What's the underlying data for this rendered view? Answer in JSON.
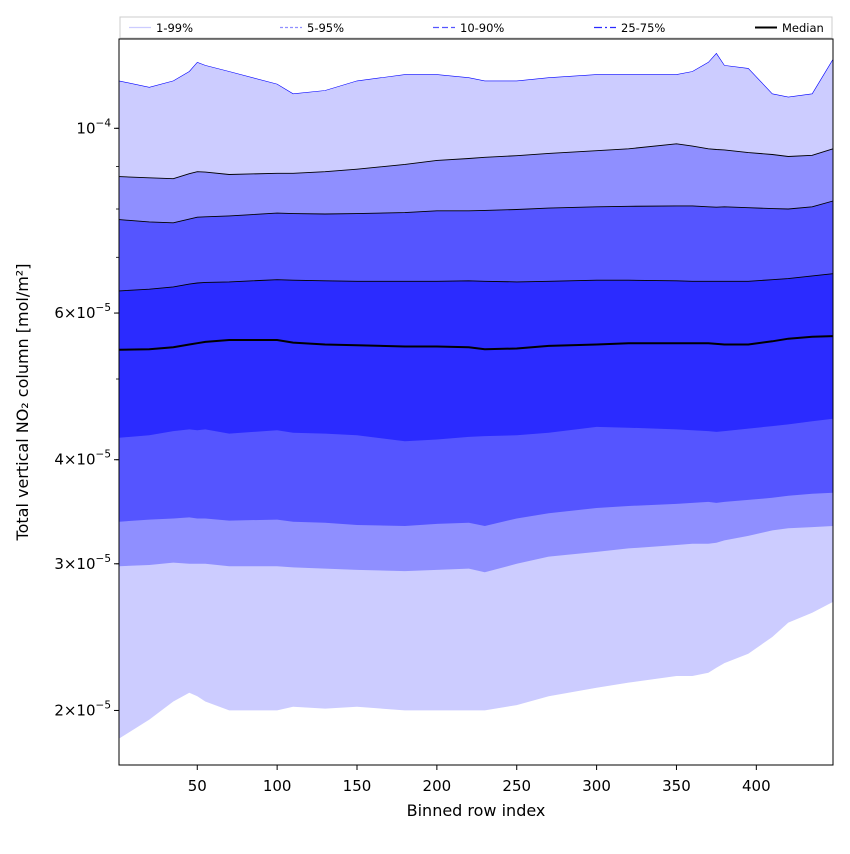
{
  "chart_data": {
    "type": "area",
    "title": "",
    "xlabel": "Binned row index",
    "ylabel": "Total vertical NO₂ column [mol/m²]",
    "y_scale": "log",
    "xlim": [
      1,
      448
    ],
    "ylim": [
      1.72e-05,
      0.000128
    ],
    "grid": false,
    "legend_placement": "top",
    "x_ticks": [
      {
        "value": 50,
        "label": "50"
      },
      {
        "value": 100,
        "label": "100"
      },
      {
        "value": 150,
        "label": "150"
      },
      {
        "value": 200,
        "label": "200"
      },
      {
        "value": 250,
        "label": "250"
      },
      {
        "value": 300,
        "label": "300"
      },
      {
        "value": 350,
        "label": "350"
      },
      {
        "value": 400,
        "label": "400"
      }
    ],
    "y_ticks": [
      {
        "value": 2e-05,
        "mantissa": "2",
        "exp": "−5"
      },
      {
        "value": 3e-05,
        "mantissa": "3",
        "exp": "−5"
      },
      {
        "value": 4e-05,
        "mantissa": "4",
        "exp": "−5"
      },
      {
        "value": 6e-05,
        "mantissa": "6",
        "exp": "−5"
      },
      {
        "value": 0.0001,
        "mantissa": "",
        "exp": "−4"
      }
    ],
    "x": [
      1,
      20,
      35,
      45,
      50,
      55,
      70,
      100,
      110,
      130,
      150,
      180,
      200,
      220,
      230,
      250,
      270,
      300,
      320,
      350,
      360,
      370,
      375,
      380,
      395,
      410,
      420,
      435,
      448
    ],
    "bands": [
      {
        "name": "1-99%",
        "color": "#ccccff",
        "edge": "#0000ff",
        "lower": [
          1.85e-05,
          1.95e-05,
          2.05e-05,
          2.1e-05,
          2.08e-05,
          2.05e-05,
          2e-05,
          2e-05,
          2.02e-05,
          2.01e-05,
          2.02e-05,
          2e-05,
          2e-05,
          2e-05,
          2e-05,
          2.03e-05,
          2.08e-05,
          2.13e-05,
          2.16e-05,
          2.2e-05,
          2.2e-05,
          2.22e-05,
          2.25e-05,
          2.28e-05,
          2.34e-05,
          2.45e-05,
          2.55e-05,
          2.62e-05,
          2.7e-05
        ],
        "upper": [
          0.000114,
          0.000112,
          0.000114,
          0.000117,
          0.00012,
          0.000119,
          0.000117,
          0.000113,
          0.00011,
          0.000111,
          0.000114,
          0.000116,
          0.000116,
          0.000115,
          0.000114,
          0.000114,
          0.000115,
          0.000116,
          0.000116,
          0.000116,
          0.000117,
          0.00012,
          0.000123,
          0.000119,
          0.000118,
          0.00011,
          0.000109,
          0.00011,
          0.000121
        ]
      },
      {
        "name": "5-95%",
        "color": "#8f8fff",
        "edge": "#000000",
        "lower": [
          2.98e-05,
          2.99e-05,
          3.01e-05,
          3e-05,
          3e-05,
          3e-05,
          2.98e-05,
          2.98e-05,
          2.97e-05,
          2.96e-05,
          2.95e-05,
          2.94e-05,
          2.95e-05,
          2.96e-05,
          2.93e-05,
          3e-05,
          3.06e-05,
          3.1e-05,
          3.13e-05,
          3.16e-05,
          3.17e-05,
          3.17e-05,
          3.18e-05,
          3.2e-05,
          3.24e-05,
          3.29e-05,
          3.31e-05,
          3.32e-05,
          3.33e-05
        ],
        "upper": [
          8.75e-05,
          8.72e-05,
          8.7e-05,
          8.82e-05,
          8.87e-05,
          8.86e-05,
          8.8e-05,
          8.83e-05,
          8.83e-05,
          8.87e-05,
          8.93e-05,
          9.05e-05,
          9.15e-05,
          9.2e-05,
          9.23e-05,
          9.27e-05,
          9.33e-05,
          9.4e-05,
          9.45e-05,
          9.58e-05,
          9.52e-05,
          9.45e-05,
          9.43e-05,
          9.42e-05,
          9.35e-05,
          9.3e-05,
          9.25e-05,
          9.28e-05,
          9.45e-05
        ]
      },
      {
        "name": "10-90%",
        "color": "#5555ff",
        "edge": "#000000",
        "lower": [
          3.37e-05,
          3.39e-05,
          3.4e-05,
          3.41e-05,
          3.4e-05,
          3.4e-05,
          3.38e-05,
          3.39e-05,
          3.37e-05,
          3.36e-05,
          3.34e-05,
          3.33e-05,
          3.35e-05,
          3.36e-05,
          3.33e-05,
          3.4e-05,
          3.45e-05,
          3.5e-05,
          3.52e-05,
          3.54e-05,
          3.55e-05,
          3.56e-05,
          3.55e-05,
          3.56e-05,
          3.58e-05,
          3.6e-05,
          3.62e-05,
          3.64e-05,
          3.65e-05
        ],
        "upper": [
          7.77e-05,
          7.72e-05,
          7.7e-05,
          7.78e-05,
          7.82e-05,
          7.83e-05,
          7.85e-05,
          7.91e-05,
          7.9e-05,
          7.89e-05,
          7.9e-05,
          7.92e-05,
          7.96e-05,
          7.96e-05,
          7.97e-05,
          7.99e-05,
          8.02e-05,
          8.05e-05,
          8.06e-05,
          8.07e-05,
          8.07e-05,
          8.05e-05,
          8.04e-05,
          8.05e-05,
          8.03e-05,
          8.01e-05,
          8e-05,
          8.05e-05,
          8.18e-05
        ]
      },
      {
        "name": "25-75%",
        "color": "#2b2bff",
        "edge": "#000000",
        "lower": [
          4.25e-05,
          4.28e-05,
          4.33e-05,
          4.35e-05,
          4.34e-05,
          4.35e-05,
          4.3e-05,
          4.34e-05,
          4.31e-05,
          4.3e-05,
          4.28e-05,
          4.21e-05,
          4.23e-05,
          4.26e-05,
          4.27e-05,
          4.28e-05,
          4.31e-05,
          4.38e-05,
          4.37e-05,
          4.35e-05,
          4.34e-05,
          4.33e-05,
          4.32e-05,
          4.33e-05,
          4.36e-05,
          4.39e-05,
          4.41e-05,
          4.45e-05,
          4.48e-05
        ],
        "upper": [
          6.38e-05,
          6.41e-05,
          6.45e-05,
          6.5e-05,
          6.52e-05,
          6.53e-05,
          6.54e-05,
          6.58e-05,
          6.57e-05,
          6.56e-05,
          6.55e-05,
          6.55e-05,
          6.55e-05,
          6.56e-05,
          6.55e-05,
          6.54e-05,
          6.55e-05,
          6.57e-05,
          6.57e-05,
          6.56e-05,
          6.55e-05,
          6.55e-05,
          6.55e-05,
          6.55e-05,
          6.55e-05,
          6.58e-05,
          6.6e-05,
          6.65e-05,
          6.69e-05
        ]
      }
    ],
    "median": {
      "name": "Median",
      "color": "#000000",
      "values": [
        5.42e-05,
        5.43e-05,
        5.46e-05,
        5.5e-05,
        5.52e-05,
        5.54e-05,
        5.57e-05,
        5.57e-05,
        5.53e-05,
        5.5e-05,
        5.49e-05,
        5.47e-05,
        5.47e-05,
        5.46e-05,
        5.43e-05,
        5.44e-05,
        5.48e-05,
        5.5e-05,
        5.52e-05,
        5.52e-05,
        5.52e-05,
        5.52e-05,
        5.51e-05,
        5.5e-05,
        5.5e-05,
        5.55e-05,
        5.59e-05,
        5.62e-05,
        5.63e-05
      ]
    },
    "legend": [
      {
        "label": "1-99%",
        "color": "#ccccff",
        "dash": ""
      },
      {
        "label": "5-95%",
        "color": "#8f8fff",
        "dash": "3,2"
      },
      {
        "label": "10-90%",
        "color": "#5555ff",
        "dash": "6,3"
      },
      {
        "label": "25-75%",
        "color": "#2b2bff",
        "dash": "8,3,2,3"
      },
      {
        "label": "Median",
        "color": "#000000",
        "dash": ""
      }
    ]
  }
}
